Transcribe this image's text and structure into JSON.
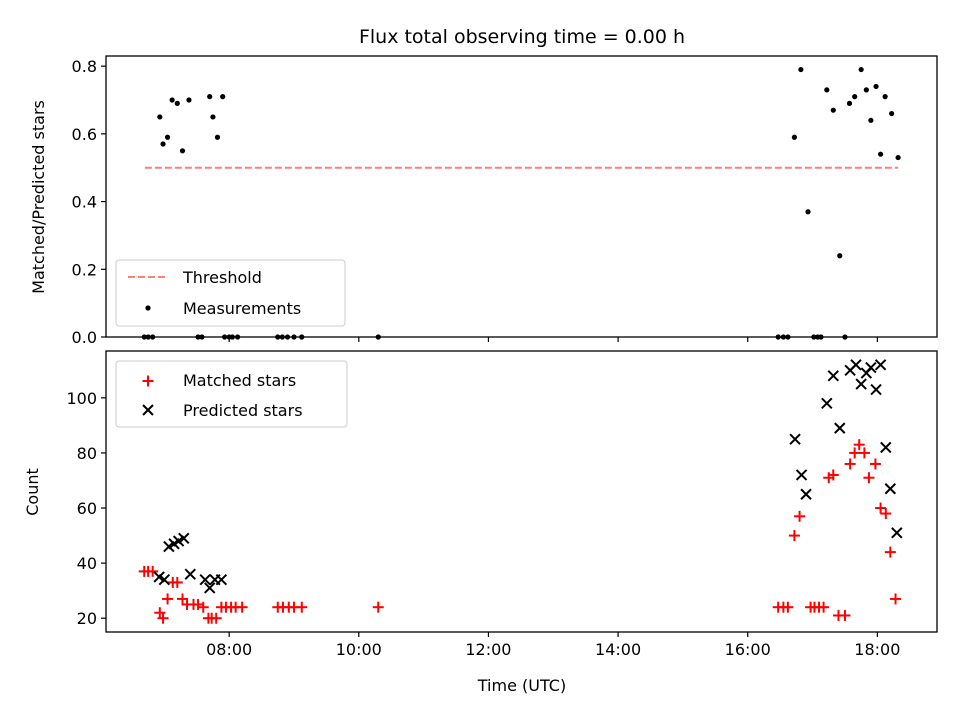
{
  "chart_data": [
    {
      "panel": "top",
      "type": "scatter",
      "title": "Flux total observing time = 0.00 h",
      "xlabel": "",
      "ylabel": "Matched/Predicted stars",
      "ylim": [
        0,
        0.83
      ],
      "yticks": [
        0.0,
        0.2,
        0.4,
        0.6,
        0.8
      ],
      "ytick_labels": [
        "0.0",
        "0.2",
        "0.4",
        "0.6",
        "0.8"
      ],
      "xlim": [
        6.1,
        18.92
      ],
      "legend_position": "lower-left",
      "threshold": {
        "name": "Threshold",
        "value": 0.5,
        "x": [
          6.7,
          18.32
        ],
        "color": "#ff7f7f"
      },
      "series": [
        {
          "name": "Measurements",
          "color": "#000000",
          "x": [
            6.69,
            6.75,
            6.82,
            6.93,
            6.98,
            7.05,
            7.12,
            7.2,
            7.28,
            7.38,
            7.52,
            7.58,
            7.7,
            7.75,
            7.82,
            7.9,
            7.93,
            8.0,
            8.05,
            8.13,
            8.75,
            8.82,
            8.9,
            9.0,
            9.12,
            10.3,
            16.47,
            16.55,
            16.62,
            16.72,
            16.82,
            16.93,
            17.02,
            17.08,
            17.13,
            17.22,
            17.32,
            17.42,
            17.5,
            17.57,
            17.65,
            17.75,
            17.83,
            17.9,
            17.98,
            18.05,
            18.12,
            18.22,
            18.32
          ],
          "y": [
            0.0,
            0.0,
            0.0,
            0.65,
            0.57,
            0.59,
            0.7,
            0.69,
            0.55,
            0.7,
            0.0,
            0.0,
            0.71,
            0.65,
            0.59,
            0.71,
            0.0,
            0.0,
            0.0,
            0.0,
            0.0,
            0.0,
            0.0,
            0.0,
            0.0,
            0.0,
            0.0,
            0.0,
            0.0,
            0.59,
            0.79,
            0.37,
            0.0,
            0.0,
            0.0,
            0.73,
            0.67,
            0.24,
            0.0,
            0.69,
            0.71,
            0.79,
            0.73,
            0.64,
            0.74,
            0.54,
            0.71,
            0.66,
            0.53
          ]
        }
      ]
    },
    {
      "panel": "bottom",
      "type": "scatter",
      "title": "",
      "xlabel": "Time (UTC)",
      "ylabel": "Count",
      "ylim": [
        15,
        117
      ],
      "yticks": [
        20,
        40,
        60,
        80,
        100
      ],
      "ytick_labels": [
        "20",
        "40",
        "60",
        "80",
        "100"
      ],
      "xlim": [
        6.1,
        18.92
      ],
      "xticks": [
        8,
        10,
        12,
        14,
        16,
        18
      ],
      "xtick_labels": [
        "08:00",
        "10:00",
        "12:00",
        "14:00",
        "16:00",
        "18:00"
      ],
      "legend_position": "top-left",
      "series": [
        {
          "name": "Matched stars",
          "marker": "plus",
          "color": "#ff0000",
          "x": [
            6.69,
            6.75,
            6.82,
            6.93,
            6.98,
            7.05,
            7.13,
            7.2,
            7.28,
            7.35,
            7.45,
            7.52,
            7.6,
            7.68,
            7.73,
            7.8,
            7.88,
            7.95,
            8.03,
            8.1,
            8.2,
            8.75,
            8.83,
            8.92,
            9.0,
            9.12,
            10.3,
            16.47,
            16.55,
            16.62,
            16.72,
            16.8,
            16.97,
            17.03,
            17.1,
            17.17,
            17.25,
            17.32,
            17.4,
            17.5,
            17.58,
            17.65,
            17.72,
            17.8,
            17.87,
            17.97,
            18.05,
            18.13,
            18.2,
            18.28
          ],
          "y": [
            37,
            37,
            37,
            22,
            20,
            27,
            33,
            33,
            27,
            25,
            25,
            25,
            24,
            20,
            20,
            20,
            24,
            24,
            24,
            24,
            24,
            24,
            24,
            24,
            24,
            24,
            24,
            24,
            24,
            24,
            50,
            57,
            24,
            24,
            24,
            24,
            71,
            72,
            21,
            21,
            76,
            80,
            83,
            80,
            71,
            76,
            60,
            58,
            44,
            27
          ]
        },
        {
          "name": "Predicted stars",
          "marker": "x",
          "color": "#000000",
          "x": [
            6.92,
            7.0,
            7.07,
            7.15,
            7.22,
            7.3,
            7.4,
            7.63,
            7.7,
            7.78,
            7.88,
            16.73,
            16.83,
            16.9,
            17.22,
            17.32,
            17.42,
            17.58,
            17.67,
            17.75,
            17.83,
            17.9,
            17.98,
            18.05,
            18.13,
            18.2,
            18.3
          ],
          "y": [
            35,
            34,
            46,
            47,
            48,
            49,
            36,
            34,
            31,
            34,
            34,
            85,
            72,
            65,
            98,
            108,
            89,
            110,
            112,
            105,
            109,
            111,
            103,
            112,
            82,
            67,
            51
          ]
        }
      ]
    }
  ]
}
